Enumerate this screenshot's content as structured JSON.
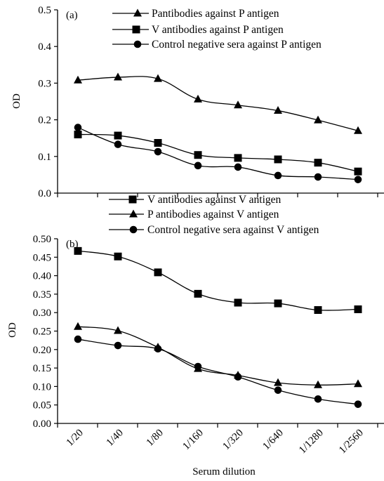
{
  "figure": {
    "xlabel": "Serum dilution"
  },
  "chart_data": [
    {
      "type": "line",
      "panel_label": "(a)",
      "ylabel": "OD",
      "ylim": [
        0,
        0.5
      ],
      "yticks": [
        "0.0",
        "0.1",
        "0.2",
        "0.3",
        "0.4",
        "0.5"
      ],
      "categories": [
        "1/20",
        "1/40",
        "1/80",
        "1/160",
        "1/320",
        "1/640",
        "1/1280",
        "1/2560"
      ],
      "grid": false,
      "legend_position": "top",
      "series": [
        {
          "name": "Pantibodies against P antigen",
          "marker": "triangle",
          "values": [
            0.308,
            0.316,
            0.312,
            0.256,
            0.24,
            0.225,
            0.199,
            0.17
          ]
        },
        {
          "name": "V antibodies against P antigen",
          "marker": "square",
          "values": [
            0.16,
            0.157,
            0.137,
            0.104,
            0.096,
            0.092,
            0.083,
            0.059
          ]
        },
        {
          "name": "Control negative sera against P antigen",
          "marker": "circle",
          "values": [
            0.179,
            0.133,
            0.113,
            0.075,
            0.071,
            0.048,
            0.044,
            0.037
          ]
        }
      ]
    },
    {
      "type": "line",
      "panel_label": "(b)",
      "ylabel": "OD",
      "ylim": [
        0,
        0.5
      ],
      "yticks": [
        "0.00",
        "0.05",
        "0.10",
        "0.15",
        "0.20",
        "0.25",
        "0.30",
        "0.35",
        "0.40",
        "0.45",
        "0.50"
      ],
      "categories": [
        "1/20",
        "1/40",
        "1/80",
        "1/160",
        "1/320",
        "1/640",
        "1/1280",
        "1/2560"
      ],
      "grid": false,
      "legend_position": "top",
      "series": [
        {
          "name": "V antibodies against V antigen",
          "marker": "square",
          "values": [
            0.467,
            0.452,
            0.409,
            0.351,
            0.327,
            0.325,
            0.307,
            0.309
          ]
        },
        {
          "name": "P antibodies against V antigen",
          "marker": "triangle",
          "values": [
            0.262,
            0.251,
            0.206,
            0.148,
            0.13,
            0.11,
            0.104,
            0.107
          ]
        },
        {
          "name": "Control negative sera against V antigen",
          "marker": "circle",
          "values": [
            0.228,
            0.211,
            0.202,
            0.154,
            0.126,
            0.09,
            0.066,
            0.052
          ]
        }
      ]
    }
  ]
}
